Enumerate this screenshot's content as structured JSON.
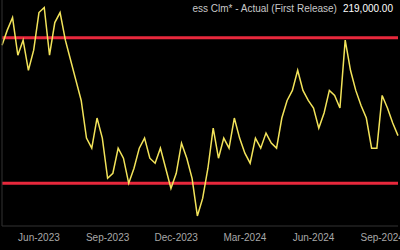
{
  "chart_data": {
    "type": "line",
    "title": "ess Clm* - Actual (First Release)",
    "latest": {
      "value": 219000,
      "label": "219,000.00"
    },
    "categories": [
      null,
      null,
      null,
      null,
      null,
      null,
      null,
      "Jun-2023",
      null,
      null,
      null,
      null,
      null,
      null,
      null,
      null,
      null,
      null,
      null,
      null,
      "Sep-2023",
      null,
      null,
      null,
      null,
      null,
      null,
      null,
      null,
      null,
      null,
      null,
      null,
      "Dec-2023",
      null,
      null,
      null,
      null,
      null,
      null,
      null,
      null,
      null,
      null,
      null,
      null,
      "Mar-2024",
      null,
      null,
      null,
      null,
      null,
      null,
      null,
      null,
      null,
      null,
      null,
      null,
      "Jun-2024",
      null,
      null,
      null,
      null,
      null,
      null,
      null,
      null,
      null,
      null,
      null,
      null,
      "Sep-2024",
      null,
      null,
      null
    ],
    "values": [
      255000,
      261000,
      266000,
      251000,
      257000,
      245000,
      253000,
      268000,
      270000,
      251000,
      264000,
      268000,
      257000,
      249000,
      241000,
      233000,
      218000,
      214000,
      226000,
      218000,
      202000,
      204000,
      214000,
      210000,
      200000,
      206000,
      214000,
      218000,
      210000,
      208000,
      214000,
      206000,
      198000,
      204000,
      216000,
      210000,
      202000,
      187000,
      194000,
      206000,
      222000,
      210000,
      218000,
      214000,
      226000,
      218000,
      212000,
      208000,
      218000,
      214000,
      220000,
      216000,
      214000,
      226000,
      233000,
      237000,
      245000,
      237000,
      233000,
      230000,
      222000,
      228000,
      237000,
      235000,
      230000,
      257000,
      245000,
      237000,
      231000,
      226000,
      214000,
      214000,
      235000,
      230000,
      224000,
      219000
    ],
    "color": "#f2e35a",
    "ylim": [
      183000,
      273000
    ],
    "tick_labels": "x",
    "reference_lines": {
      "values": [
        258000,
        200000
      ],
      "color": "#e8283c"
    }
  }
}
